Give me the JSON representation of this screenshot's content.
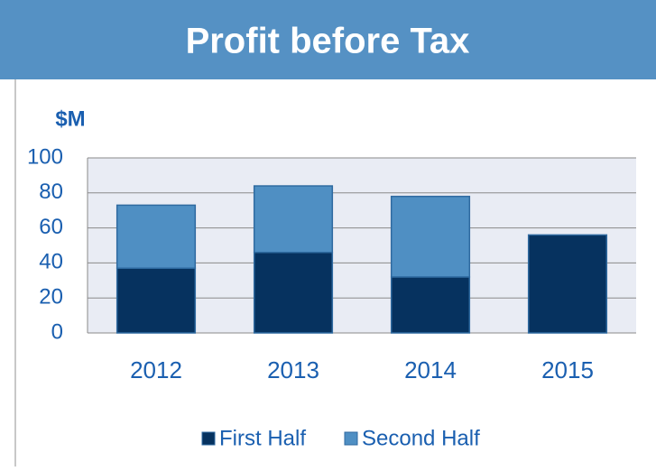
{
  "chart_data": {
    "type": "stacked_bar",
    "title": "Profit before Tax",
    "y_label": "$M",
    "categories": [
      "2012",
      "2013",
      "2014",
      "2015"
    ],
    "series": [
      {
        "name": "First Half",
        "color": "#06325f",
        "values": [
          37,
          46,
          32,
          56
        ]
      },
      {
        "name": "Second Half",
        "color": "#4f8fc3",
        "values": [
          36,
          38,
          46,
          null
        ]
      }
    ],
    "ylim": [
      0,
      100
    ],
    "yticks": [
      0,
      20,
      40,
      60,
      80,
      100
    ],
    "grid": true,
    "legend": "bottom"
  }
}
